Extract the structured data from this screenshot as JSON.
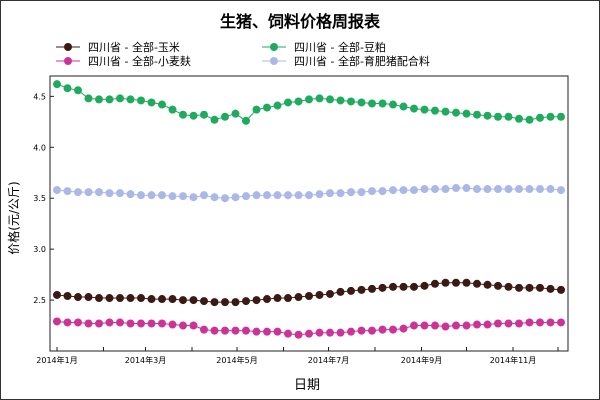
{
  "chart_data": {
    "type": "line",
    "title": "生猪、饲料价格周报表",
    "xlabel": "日期",
    "ylabel": "价格(元/公斤)",
    "ylim": [
      2.0,
      4.7
    ],
    "yticks": [
      "2.5",
      "3.0",
      "3.5",
      "4.0",
      "4.5"
    ],
    "xticks": [
      "2014年1月",
      "2014年3月",
      "2014年5月",
      "2014年7月",
      "2014年9月",
      "2014年11月"
    ],
    "x_start": "2014-01-01",
    "x_interval": "weekly",
    "legend_position": "top",
    "series": [
      {
        "name": "四川省 - 全部-玉米",
        "color": "#3b1a14",
        "values": [
          2.55,
          2.54,
          2.53,
          2.53,
          2.52,
          2.52,
          2.52,
          2.52,
          2.52,
          2.51,
          2.51,
          2.51,
          2.5,
          2.5,
          2.49,
          2.48,
          2.48,
          2.48,
          2.49,
          2.5,
          2.51,
          2.52,
          2.52,
          2.53,
          2.54,
          2.55,
          2.56,
          2.58,
          2.59,
          2.6,
          2.61,
          2.62,
          2.63,
          2.63,
          2.63,
          2.64,
          2.66,
          2.67,
          2.67,
          2.67,
          2.66,
          2.65,
          2.64,
          2.63,
          2.62,
          2.62,
          2.62,
          2.61,
          2.6
        ]
      },
      {
        "name": "四川省 - 全部-小麦麸",
        "color": "#cc3399",
        "values": [
          2.29,
          2.28,
          2.28,
          2.27,
          2.27,
          2.28,
          2.28,
          2.27,
          2.27,
          2.27,
          2.27,
          2.26,
          2.25,
          2.25,
          2.21,
          2.2,
          2.2,
          2.2,
          2.2,
          2.19,
          2.19,
          2.19,
          2.17,
          2.16,
          2.17,
          2.18,
          2.18,
          2.18,
          2.19,
          2.2,
          2.2,
          2.21,
          2.21,
          2.22,
          2.25,
          2.25,
          2.25,
          2.24,
          2.25,
          2.25,
          2.26,
          2.26,
          2.27,
          2.27,
          2.27,
          2.28,
          2.28,
          2.28,
          2.28
        ]
      },
      {
        "name": "四川省 - 全部-豆粕",
        "color": "#1faa5e",
        "values": [
          4.62,
          4.58,
          4.56,
          4.48,
          4.47,
          4.47,
          4.48,
          4.47,
          4.46,
          4.44,
          4.42,
          4.37,
          4.32,
          4.31,
          4.32,
          4.27,
          4.3,
          4.33,
          4.26,
          4.37,
          4.39,
          4.41,
          4.44,
          4.45,
          4.47,
          4.48,
          4.47,
          4.46,
          4.45,
          4.44,
          4.43,
          4.43,
          4.42,
          4.4,
          4.38,
          4.37,
          4.36,
          4.35,
          4.34,
          4.33,
          4.32,
          4.31,
          4.3,
          4.3,
          4.28,
          4.27,
          4.29,
          4.3,
          4.3
        ]
      },
      {
        "name": "四川省 - 全部-育肥猪配合料",
        "color": "#a9b8e8",
        "values": [
          3.58,
          3.57,
          3.56,
          3.56,
          3.56,
          3.55,
          3.55,
          3.54,
          3.53,
          3.53,
          3.53,
          3.52,
          3.52,
          3.51,
          3.53,
          3.51,
          3.5,
          3.51,
          3.52,
          3.53,
          3.53,
          3.53,
          3.53,
          3.53,
          3.53,
          3.54,
          3.55,
          3.55,
          3.56,
          3.56,
          3.57,
          3.57,
          3.58,
          3.58,
          3.58,
          3.59,
          3.59,
          3.59,
          3.6,
          3.6,
          3.59,
          3.59,
          3.59,
          3.59,
          3.59,
          3.59,
          3.59,
          3.59,
          3.58
        ]
      }
    ]
  }
}
